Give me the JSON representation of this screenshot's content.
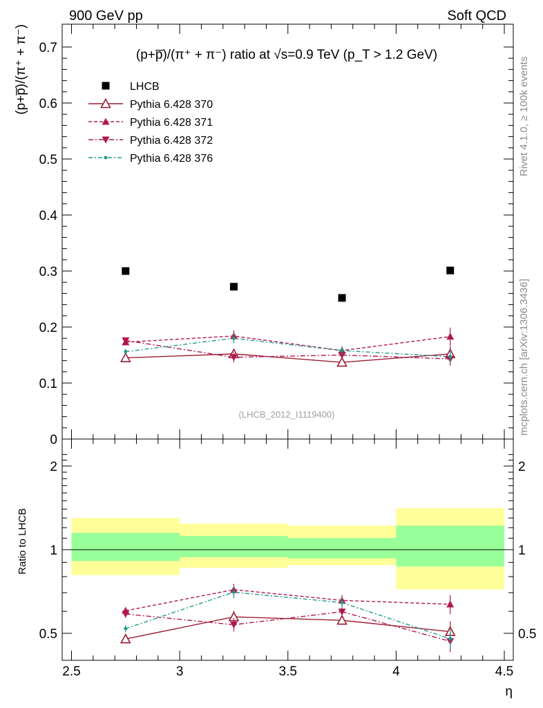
{
  "header": {
    "left": "900 GeV pp",
    "right": "Soft QCD"
  },
  "side": {
    "rivet": "Rivet 4.1.0, ≥ 100k events",
    "mcplots": "mcplots.cern.ch [arXiv:1306.3436]"
  },
  "chart_data": [
    {
      "type": "scatter",
      "title": "(p+p̅)/(π⁺ + π⁻) ratio at √s=0.9 TeV (p_T > 1.2 GeV)",
      "ylabel": "(p+p̅)/(π⁺ + π⁻)",
      "xlabel": "η",
      "watermark": "(LHCB_2012_I1119400)",
      "xlim": [
        2.5,
        4.5
      ],
      "ylim": [
        0,
        0.75
      ],
      "ytick_labels": [
        "0",
        "0.1",
        "0.2",
        "0.3",
        "0.4",
        "0.5",
        "0.6",
        "0.7"
      ],
      "xtick_labels": [
        "2.5",
        "3",
        "3.5",
        "4",
        "4.5"
      ],
      "x": [
        2.75,
        3.25,
        3.75,
        4.25
      ],
      "bin_edges": [
        2.5,
        3.0,
        3.5,
        4.0,
        4.5
      ],
      "legend": [
        "LHCB",
        "Pythia 6.428 370",
        "Pythia 6.428 371",
        "Pythia 6.428 372",
        "Pythia 6.428 376"
      ],
      "series": [
        {
          "name": "LHCB",
          "values": [
            0.3,
            0.272,
            0.252,
            0.301
          ],
          "errors": [
            0.003,
            0.003,
            0.003,
            0.003
          ],
          "color": "#000000",
          "marker": "square",
          "line": "none"
        },
        {
          "name": "Pythia 6.428 370",
          "values": [
            0.145,
            0.152,
            0.137,
            0.152
          ],
          "errors": [
            0.005,
            0.009,
            0.006,
            0.014
          ],
          "color": "#9b1b30",
          "marker": "triangle-open",
          "line": "solid"
        },
        {
          "name": "Pythia 6.428 371",
          "values": [
            0.173,
            0.184,
            0.158,
            0.183
          ],
          "errors": [
            0.005,
            0.01,
            0.008,
            0.016
          ],
          "color": "#b0174f",
          "marker": "triangle-up",
          "line": "dashed"
        },
        {
          "name": "Pythia 6.428 372",
          "values": [
            0.176,
            0.146,
            0.15,
            0.143
          ],
          "errors": [
            0.005,
            0.009,
            0.007,
            0.012
          ],
          "color": "#b0174f",
          "marker": "triangle-down",
          "line": "dashdot"
        },
        {
          "name": "Pythia 6.428 376",
          "values": [
            0.156,
            0.18,
            0.158,
            0.147
          ],
          "errors": [
            0.005,
            0.009,
            0.008,
            0.012
          ],
          "color": "#1f9a8a",
          "marker": "dot",
          "line": "dashdot-teal"
        }
      ]
    },
    {
      "type": "scatter",
      "ylabel": "Ratio to LHCB",
      "xlabel": "η",
      "xlim": [
        2.5,
        4.5
      ],
      "ylim": [
        0.4,
        2.4
      ],
      "ytick_labels": [
        "0.5",
        "1",
        "2"
      ],
      "x": [
        2.75,
        3.25,
        3.75,
        4.25
      ],
      "bands": {
        "stat": [
          [
            0.91,
            1.15
          ],
          [
            0.94,
            1.12
          ],
          [
            0.93,
            1.1
          ],
          [
            0.87,
            1.22
          ]
        ],
        "total": [
          [
            0.81,
            1.3
          ],
          [
            0.86,
            1.24
          ],
          [
            0.88,
            1.22
          ],
          [
            0.72,
            1.41
          ]
        ]
      },
      "series": [
        {
          "name": "Pythia 6.428 370",
          "values": [
            0.477,
            0.573,
            0.557,
            0.507
          ],
          "errors": [
            0.015,
            0.03,
            0.02,
            0.045
          ]
        },
        {
          "name": "Pythia 6.428 371",
          "values": [
            0.603,
            0.718,
            0.657,
            0.636
          ],
          "errors": [
            0.018,
            0.035,
            0.03,
            0.05
          ]
        },
        {
          "name": "Pythia 6.428 372",
          "values": [
            0.587,
            0.537,
            0.598,
            0.468
          ],
          "errors": [
            0.018,
            0.03,
            0.028,
            0.04
          ]
        },
        {
          "name": "Pythia 6.428 376",
          "values": [
            0.52,
            0.703,
            0.645,
            0.478
          ],
          "errors": [
            0.016,
            0.035,
            0.03,
            0.04
          ]
        }
      ]
    }
  ]
}
